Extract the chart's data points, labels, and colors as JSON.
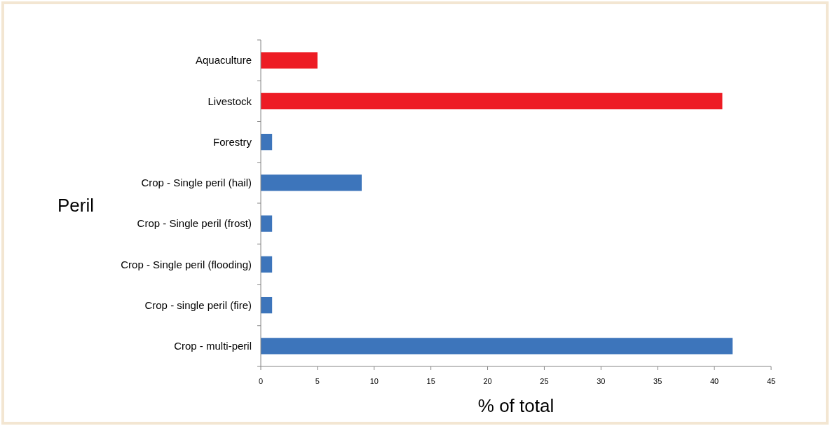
{
  "chart_data": {
    "type": "bar",
    "orientation": "horizontal",
    "xlabel": "% of total",
    "ylabel": "Peril",
    "categories": [
      "Aquaculture",
      "Livestock",
      "Forestry",
      "Crop - Single peril (hail)",
      "Crop - Single peril (frost)",
      "Crop - Single peril (flooding)",
      "Crop - single peril (fire)",
      "Crop - multi-peril"
    ],
    "values": [
      5,
      40.7,
      1,
      8.9,
      1,
      1,
      1,
      41.6
    ],
    "colors": [
      "#ed1c24",
      "#ed1c24",
      "#3d75bb",
      "#3d75bb",
      "#3d75bb",
      "#3d75bb",
      "#3d75bb",
      "#3d75bb"
    ],
    "xlim": [
      0,
      45
    ],
    "xticks": [
      0,
      5,
      10,
      15,
      20,
      25,
      30,
      35,
      40,
      45
    ]
  }
}
